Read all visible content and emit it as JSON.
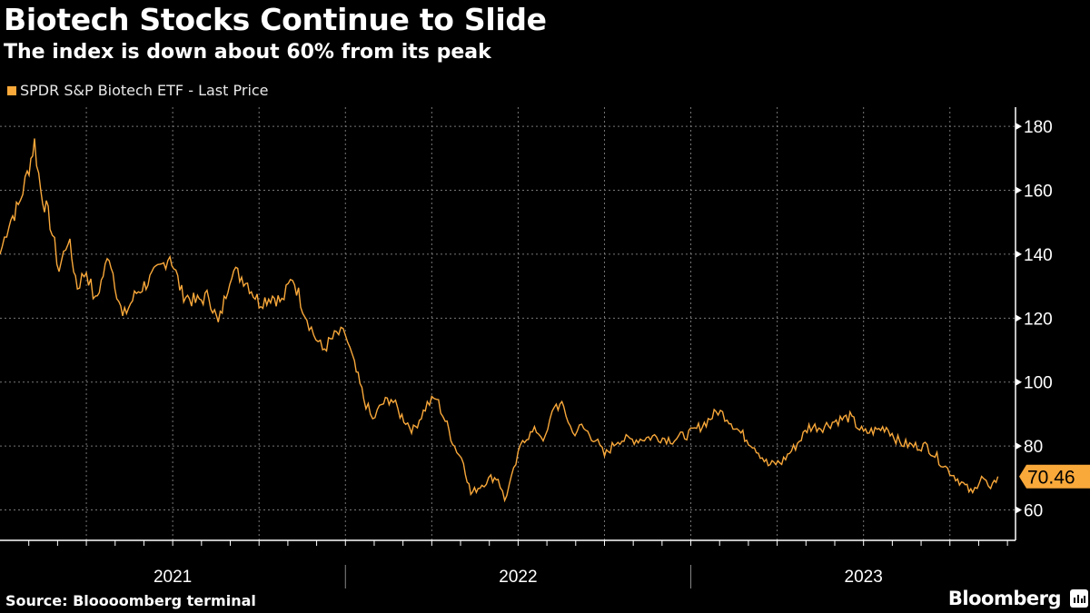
{
  "header": {
    "title": "Biotech Stocks Continue to Slide",
    "subtitle": "The index is down about 60% from its peak"
  },
  "footer": {
    "source": "Source: Bloooomberg terminal",
    "brand": "Bloomberg"
  },
  "colors": {
    "series": "#f9a83a",
    "background": "#000000",
    "grid": "#777777",
    "axis": "#ffffff"
  },
  "chart_data": {
    "type": "line",
    "title": "Biotech Stocks Continue to Slide",
    "subtitle": "The index is down about 60% from its peak",
    "series": [
      {
        "name": "SPDR S&P Biotech ETF - Last Price",
        "last_value_label": "70.46",
        "t_years_from_2021": [
          0,
          0.026,
          0.053,
          0.079,
          0.1,
          0.118,
          0.145,
          0.171,
          0.197,
          0.224,
          0.25,
          0.276,
          0.316,
          0.355,
          0.395,
          0.434,
          0.474,
          0.492,
          0.526,
          0.566,
          0.605,
          0.632,
          0.671,
          0.711,
          0.75,
          0.789,
          0.816,
          0.847,
          0.882,
          0.908,
          0.934,
          0.974,
          1,
          1.026,
          1.053,
          1.079,
          1.105,
          1.132,
          1.158,
          1.197,
          1.237,
          1.263,
          1.289,
          1.316,
          1.342,
          1.363,
          1.395,
          1.421,
          1.442,
          1.461,
          1.487,
          1.513,
          1.553,
          1.579,
          1.605,
          1.632,
          1.658,
          1.684,
          1.724,
          1.75,
          1.789,
          1.842,
          1.895,
          1.947,
          2,
          2.039,
          2.079,
          2.105,
          2.145,
          2.184,
          2.224,
          2.263,
          2.303,
          2.342,
          2.382,
          2.421,
          2.461,
          2.5,
          2.539,
          2.566,
          2.605,
          2.645,
          2.684,
          2.724,
          2.75,
          2.789,
          2.816,
          2.842,
          2.868,
          2.889
        ],
        "values": [
          140,
          150,
          155,
          165,
          175,
          160,
          150,
          135,
          145,
          130,
          135,
          125,
          140,
          120,
          128,
          132,
          137,
          140,
          128,
          125,
          127,
          118,
          135,
          132,
          125,
          127,
          125,
          133,
          122,
          115,
          110,
          115,
          115,
          105,
          95,
          88,
          93,
          95,
          90,
          85,
          93,
          95,
          88,
          80,
          75,
          65,
          68,
          70,
          70,
          63,
          72,
          82,
          85,
          82,
          93,
          92,
          84,
          86,
          82,
          77,
          82,
          82,
          83,
          82,
          84,
          87,
          91,
          89,
          84,
          80,
          74,
          75,
          80,
          86,
          86,
          88,
          89,
          84,
          85,
          86,
          81,
          80,
          80,
          75,
          72,
          68,
          65,
          71,
          66,
          70.46
        ]
      }
    ],
    "y_ticks": [
      60,
      80,
      100,
      120,
      140,
      160,
      180
    ],
    "ylim": [
      50.5,
      186
    ],
    "x_labels": [
      "2021",
      "2022",
      "2023"
    ],
    "xlim_years_from_2021": [
      0,
      2.94
    ],
    "grid": true,
    "legend": "top-left",
    "y_axis_side": "right"
  }
}
